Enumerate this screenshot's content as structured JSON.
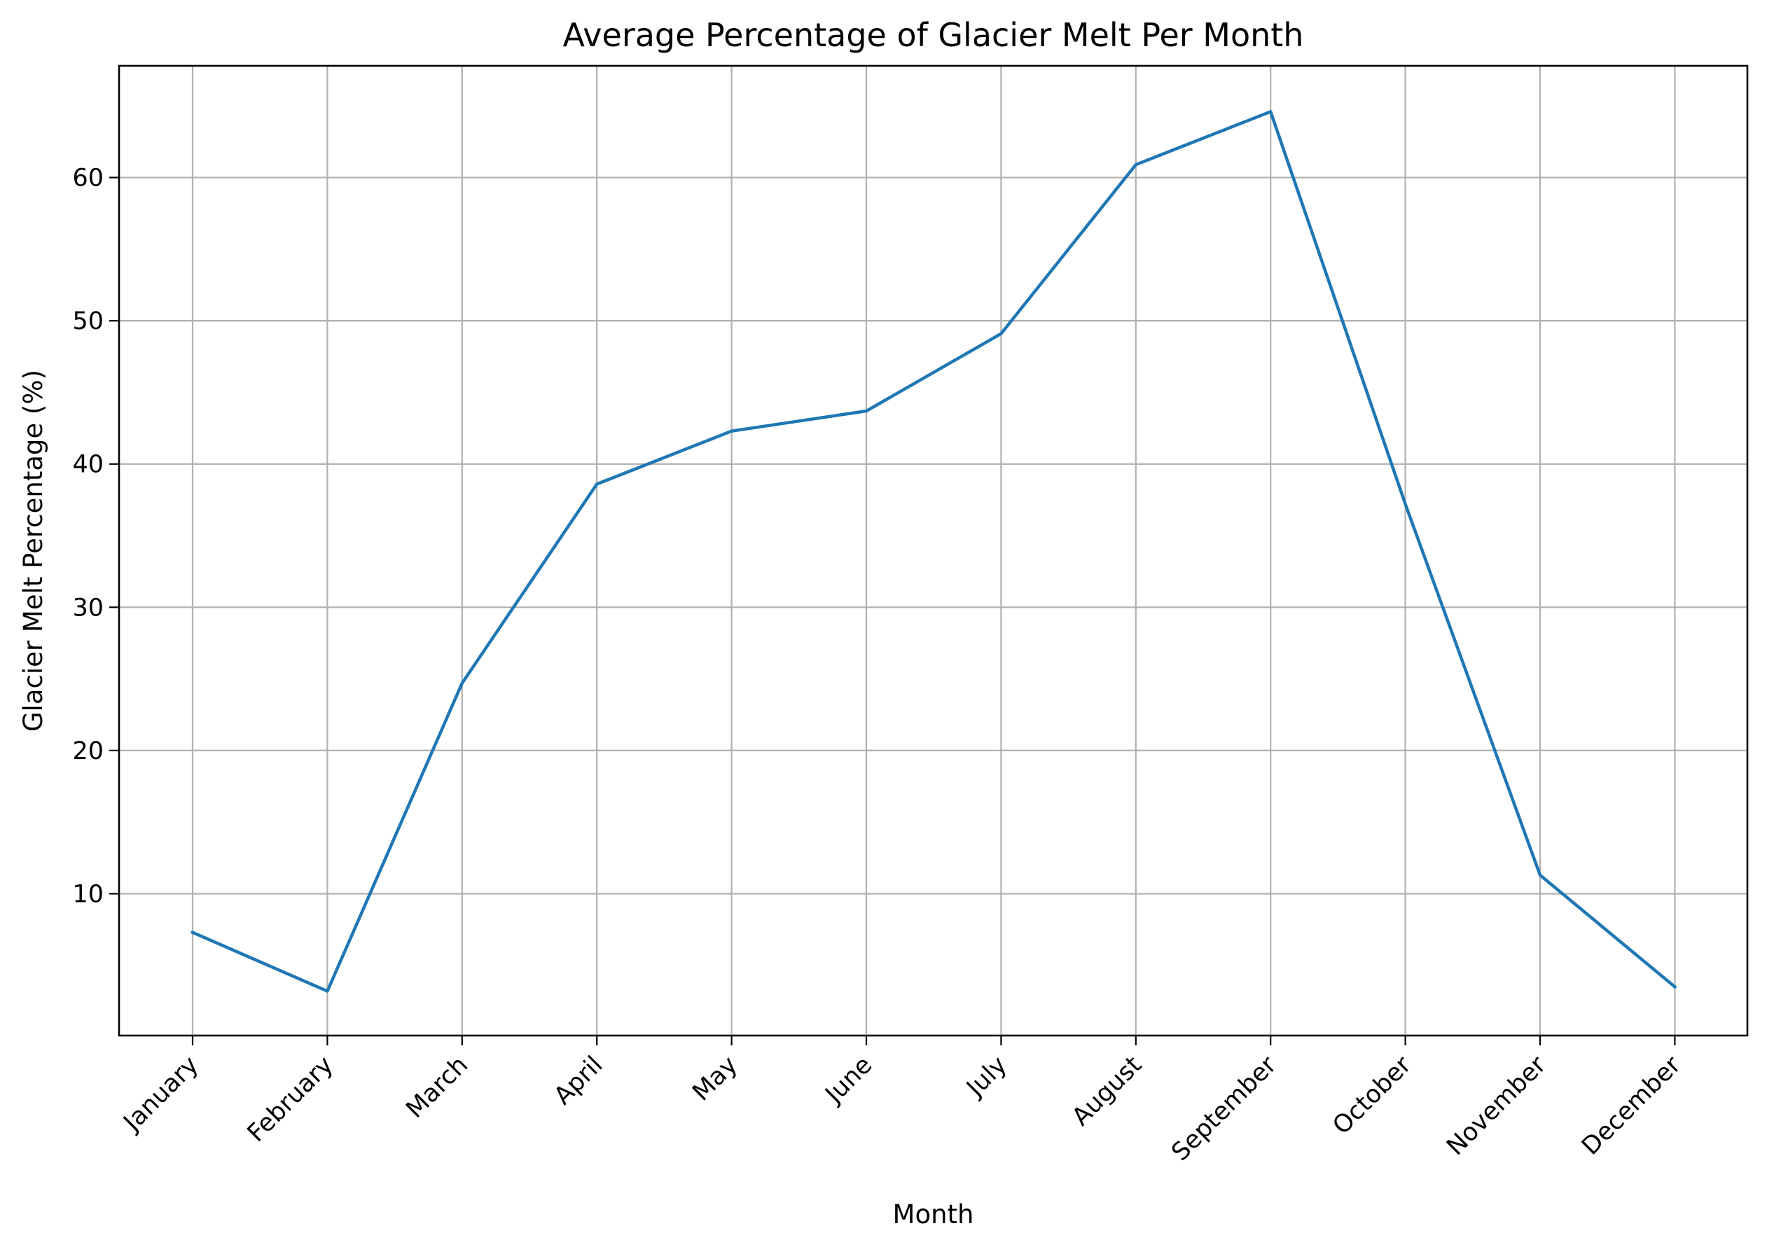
{
  "chart_data": {
    "type": "line",
    "title": "Average Percentage of Glacier Melt Per Month",
    "xlabel": "Month",
    "ylabel": "Glacier Melt Percentage (%)",
    "categories": [
      "January",
      "February",
      "March",
      "April",
      "May",
      "June",
      "July",
      "August",
      "September",
      "October",
      "November",
      "December"
    ],
    "series": [
      {
        "values": [
          7.3,
          3.2,
          24.7,
          38.6,
          42.3,
          43.7,
          49.1,
          60.9,
          64.6,
          37.2,
          11.3,
          3.5
        ],
        "color": "#1f77b4"
      }
    ],
    "yticks": [
      10,
      20,
      30,
      40,
      50,
      60
    ],
    "ylim": [
      0.1,
      67.8
    ],
    "grid": true,
    "legend": "none"
  }
}
